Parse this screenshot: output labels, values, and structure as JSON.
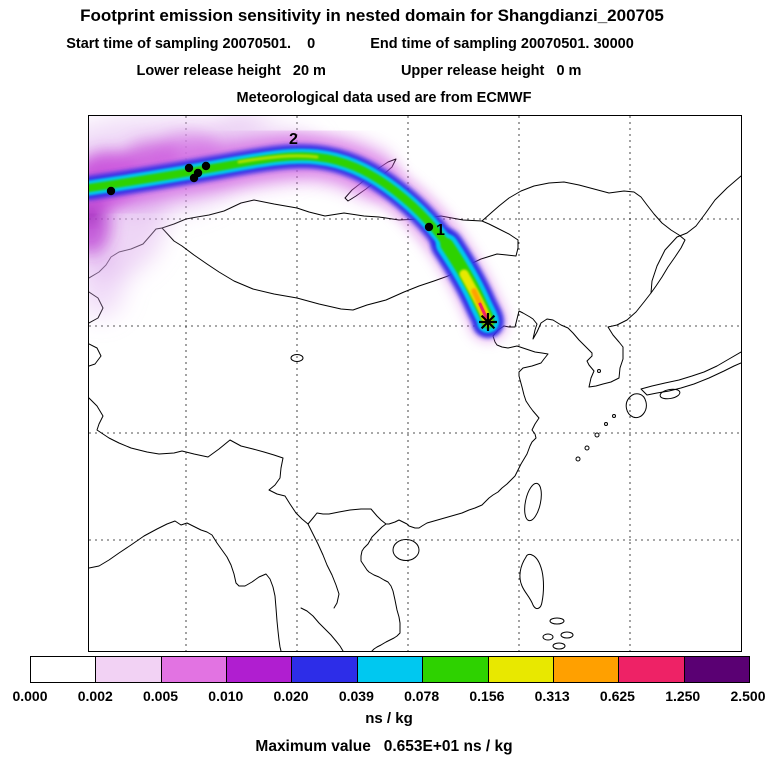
{
  "header": {
    "title": "Footprint emission sensitivity in nested domain for Shangdianzi_200705",
    "start_time": "Start time of sampling 20070501.    0",
    "end_time": "End time of sampling 20070501. 30000",
    "lower_release": "Lower release height   20 m",
    "upper_release": "Upper release height   0 m",
    "met_data": "Meteorological data used are from ECMWF"
  },
  "map": {
    "station_labels": [
      {
        "text": "2"
      },
      {
        "text": "1"
      }
    ],
    "receptor_marker": "star at Shangdianzi",
    "grid_style": "dashed latitude/longitude grid"
  },
  "colorbar": {
    "levels": [
      "0.000",
      "0.002",
      "0.005",
      "0.010",
      "0.020",
      "0.039",
      "0.078",
      "0.156",
      "0.313",
      "0.625",
      "1.250",
      "2.500"
    ],
    "colors": [
      "#ffffff",
      "#f2d2f4",
      "#e273e2",
      "#b01ed0",
      "#2d2de8",
      "#00c8f0",
      "#2ed200",
      "#e8e800",
      "#ffa000",
      "#ee2266",
      "#5a0073"
    ],
    "units": "ns / kg"
  },
  "footer": {
    "max_value_line": "Maximum value   0.653E+01 ns / kg"
  },
  "chart_data": {
    "type": "heatmap",
    "title": "Footprint emission sensitivity in nested domain for Shangdianzi_200705",
    "subtitle_lines": [
      "Start time of sampling 20070501. 0    End time of sampling 20070501. 30000",
      "Lower release height 20 m    Upper release height 0 m",
      "Meteorological data used are from ECMWF"
    ],
    "units": "ns / kg",
    "colorbar_levels": [
      0.0,
      0.002,
      0.005,
      0.01,
      0.02,
      0.039,
      0.078,
      0.156,
      0.313,
      0.625,
      1.25,
      2.5
    ],
    "colorbar_colors": [
      "#ffffff",
      "#f2d2f4",
      "#e273e2",
      "#b01ed0",
      "#2d2de8",
      "#00c8f0",
      "#2ed200",
      "#e8e800",
      "#ffa000",
      "#ee2266",
      "#5a0073"
    ],
    "max_value": "0.653E+01 ns / kg",
    "receptor_site": "Shangdianzi (black star, ~40.6N 117E, north of Bohai Bay)",
    "stations_marked": [
      "1",
      "2"
    ],
    "plume_description": "High-sensitivity plume (yellow/orange/red core up to >2.5 ns/kg) at the receptor, extending northwest as a green/cyan/blue band across Mongolia to the upper-left domain edge, with diffuse magenta/violet sensitivity (0.002-0.02 ns/kg) over the northwest corner",
    "basemap": "East Asia coastlines and country borders, dashed 10-degree lat/lon grid (approx. 80E-140E, 10N-60N)",
    "legend_position": "horizontal colorbar below map"
  }
}
